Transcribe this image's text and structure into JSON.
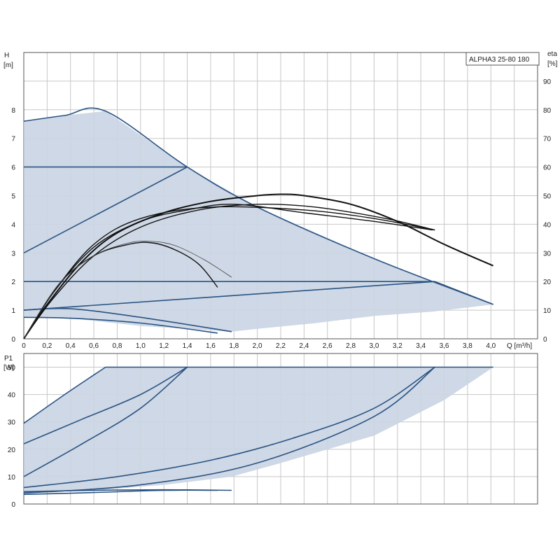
{
  "title": "ALPHA3 25-80 180",
  "colors": {
    "area": "#cdd8e6",
    "line": "#2a5382",
    "eta": "#111111",
    "grid": "#c7c7c7",
    "frame": "#555555"
  },
  "chart_data": [
    {
      "name": "head-chart",
      "type": "line",
      "ylabel_line1": "H",
      "ylabel_line2": "[m]",
      "y2label_line1": "eta",
      "y2label_line2": "[%]",
      "xlabel": "Q [m³/h]",
      "xlim": [
        0,
        4.4
      ],
      "ylim": [
        0,
        10
      ],
      "y2lim": [
        0,
        100
      ],
      "x_ticks": [
        "0",
        "0,2",
        "0,4",
        "0,6",
        "0,8",
        "1,0",
        "1,2",
        "1,4",
        "1,6",
        "1,8",
        "2,0",
        "2,2",
        "2,4",
        "2,6",
        "2,8",
        "3,0",
        "3,2",
        "3,4",
        "3,6",
        "3,8",
        "4,0"
      ],
      "y_ticks": [
        "0",
        "1",
        "2",
        "3",
        "4",
        "5",
        "6",
        "7",
        "8"
      ],
      "y2_ticks": [
        "0",
        "10",
        "20",
        "30",
        "40",
        "50",
        "60",
        "70",
        "80",
        "90"
      ],
      "grid": true,
      "area": [
        [
          0,
          7.6
        ],
        [
          0.35,
          7.8
        ],
        [
          0.7,
          7.95
        ],
        [
          1.4,
          6.0
        ],
        [
          2.0,
          4.6
        ],
        [
          3.0,
          2.8
        ],
        [
          4.02,
          1.2
        ],
        [
          3.5,
          0.95
        ],
        [
          3.0,
          0.8
        ],
        [
          2.5,
          0.55
        ],
        [
          2.0,
          0.35
        ],
        [
          1.78,
          0.25
        ],
        [
          1.0,
          0.45
        ],
        [
          0.4,
          0.72
        ],
        [
          0,
          0.75
        ]
      ],
      "series": [
        {
          "points": [
            [
              0,
              7.6
            ],
            [
              0.35,
              7.8
            ],
            [
              0.7,
              7.95
            ],
            [
              1.4,
              6.0
            ],
            [
              2.0,
              4.6
            ],
            [
              3.0,
              2.8
            ],
            [
              4.02,
              1.2
            ]
          ]
        },
        {
          "points": [
            [
              0,
              6.0
            ],
            [
              1.4,
              6.0
            ]
          ]
        },
        {
          "points": [
            [
              0,
              3.0
            ],
            [
              1.4,
              6.0
            ]
          ]
        },
        {
          "points": [
            [
              0,
              2.0
            ],
            [
              3.52,
              2.0
            ]
          ]
        },
        {
          "points": [
            [
              0,
              1.0
            ],
            [
              3.52,
              2.0
            ]
          ]
        },
        {
          "points": [
            [
              3.52,
              2.0
            ],
            [
              4.02,
              1.2
            ]
          ]
        },
        {
          "points": [
            [
              0,
              1.0
            ],
            [
              0.4,
              1.05
            ],
            [
              1.0,
              0.75
            ],
            [
              1.78,
              0.25
            ]
          ]
        },
        {
          "points": [
            [
              0,
              0.75
            ],
            [
              0.4,
              0.72
            ],
            [
              1.0,
              0.55
            ],
            [
              1.66,
              0.2
            ]
          ]
        }
      ],
      "eta_curves": [
        {
          "points": [
            [
              0,
              0
            ],
            [
              0.2,
              12
            ],
            [
              0.5,
              27
            ],
            [
              0.8,
              37
            ],
            [
              1.2,
              44
            ],
            [
              1.6,
              48
            ],
            [
              2.0,
              50
            ],
            [
              2.2,
              50.5
            ],
            [
              2.4,
              50
            ],
            [
              2.8,
              47
            ],
            [
              3.2,
              41
            ],
            [
              3.6,
              33
            ],
            [
              4.02,
              25.5
            ]
          ],
          "weight": "heavy"
        },
        {
          "points": [
            [
              0,
              0
            ],
            [
              0.25,
              16
            ],
            [
              0.6,
              32
            ],
            [
              1.0,
              41
            ],
            [
              1.4,
              45
            ],
            [
              1.8,
              47
            ],
            [
              2.4,
              44
            ],
            [
              3.0,
              41
            ],
            [
              3.5,
              38
            ]
          ],
          "weight": "normal"
        },
        {
          "points": [
            [
              0,
              0
            ],
            [
              0.25,
              16
            ],
            [
              0.6,
              33
            ],
            [
              1.0,
              42
            ],
            [
              1.6,
              46
            ],
            [
              2.4,
              45
            ],
            [
              3.0,
              42
            ],
            [
              3.52,
              38
            ]
          ],
          "weight": "normal"
        },
        {
          "points": [
            [
              0,
              0
            ],
            [
              0.25,
              14
            ],
            [
              0.6,
              29
            ],
            [
              1.0,
              39
            ],
            [
              1.5,
              45
            ],
            [
              2.0,
              47
            ],
            [
              2.5,
              46
            ],
            [
              3.1,
              42
            ],
            [
              3.52,
              38
            ]
          ],
          "weight": "normal"
        },
        {
          "points": [
            [
              0,
              0
            ],
            [
              0.3,
              19
            ],
            [
              0.6,
              29
            ],
            [
              0.9,
              33
            ],
            [
              1.1,
              33.5
            ],
            [
              1.3,
              31
            ],
            [
              1.5,
              26
            ],
            [
              1.66,
              18
            ]
          ],
          "weight": "normal"
        },
        {
          "points": [
            [
              0,
              0
            ],
            [
              0.3,
              19
            ],
            [
              0.6,
              29
            ],
            [
              0.9,
              33.5
            ],
            [
              1.1,
              34
            ],
            [
              1.3,
              32.5
            ],
            [
              1.55,
              27.5
            ],
            [
              1.78,
              21.5
            ]
          ],
          "weight": "thin"
        }
      ]
    },
    {
      "name": "power-chart",
      "type": "line",
      "ylabel_line1": "P1",
      "ylabel_line2": "[W]",
      "xlim": [
        0,
        4.4
      ],
      "ylim": [
        0,
        55
      ],
      "y_ticks": [
        "0",
        "10",
        "20",
        "30",
        "40",
        "50"
      ],
      "grid": true,
      "area": [
        [
          0,
          29.5
        ],
        [
          0.35,
          40
        ],
        [
          0.7,
          50
        ],
        [
          4.02,
          50
        ],
        [
          3.6,
          38
        ],
        [
          3.0,
          25
        ],
        [
          2.2,
          15
        ],
        [
          1.78,
          10
        ],
        [
          1.2,
          7
        ],
        [
          0.6,
          5
        ],
        [
          0,
          4
        ]
      ],
      "series": [
        {
          "points": [
            [
              0,
              29.5
            ],
            [
              0.35,
              40
            ],
            [
              0.7,
              50
            ]
          ]
        },
        {
          "points": [
            [
              0.7,
              50
            ],
            [
              4.02,
              50
            ]
          ]
        },
        {
          "points": [
            [
              0,
              22
            ],
            [
              0.5,
              31
            ],
            [
              1.0,
              40
            ],
            [
              1.4,
              50
            ]
          ]
        },
        {
          "points": [
            [
              0,
              10
            ],
            [
              0.5,
              22
            ],
            [
              1.0,
              35
            ],
            [
              1.4,
              50
            ]
          ]
        },
        {
          "points": [
            [
              0,
              6
            ],
            [
              0.8,
              10
            ],
            [
              1.6,
              16
            ],
            [
              2.3,
              24
            ],
            [
              3.0,
              35
            ],
            [
              3.52,
              50
            ]
          ]
        },
        {
          "points": [
            [
              0,
              4
            ],
            [
              1.0,
              7
            ],
            [
              2.0,
              15
            ],
            [
              3.0,
              32
            ],
            [
              3.52,
              50
            ]
          ]
        },
        {
          "points": [
            [
              0,
              4.5
            ],
            [
              0.6,
              5
            ],
            [
              1.2,
              5.2
            ],
            [
              1.78,
              5
            ]
          ]
        },
        {
          "points": [
            [
              0,
              3.5
            ],
            [
              0.6,
              4.2
            ],
            [
              1.2,
              5
            ],
            [
              1.66,
              5
            ]
          ]
        }
      ]
    }
  ]
}
